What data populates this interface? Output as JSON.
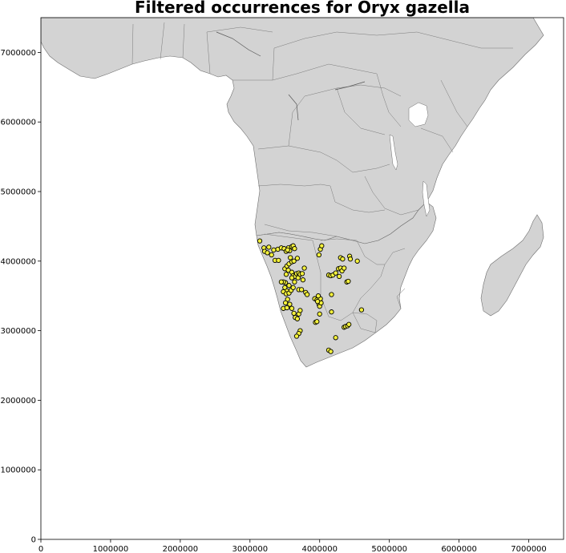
{
  "title": "Filtered occurrences for Oryx gazella",
  "colors": {
    "land": "#d3d3d3",
    "border": "#7a7a7a",
    "point_fill": "#f4f13c",
    "point_edge": "#000000"
  },
  "chart_data": {
    "type": "scatter",
    "title": "Filtered occurrences for Oryx gazella",
    "xlabel": "",
    "ylabel": "",
    "xlim": [
      0,
      7500000
    ],
    "ylim": [
      0,
      7500000
    ],
    "x_ticks": [
      0,
      1000000,
      2000000,
      3000000,
      4000000,
      5000000,
      6000000,
      7000000
    ],
    "y_ticks": [
      0,
      1000000,
      2000000,
      3000000,
      4000000,
      5000000,
      6000000,
      7000000
    ],
    "x_tick_labels": [
      "0",
      "1000000",
      "2000000",
      "3000000",
      "4000000",
      "5000000",
      "6000000",
      "7000000"
    ],
    "y_tick_labels": [
      "0",
      "1000000",
      "2000000",
      "3000000",
      "4000000",
      "5000000",
      "6000000",
      "7000000"
    ],
    "grid": false,
    "basemap": "Africa country outlines",
    "series": [
      {
        "points": [
          [
            3140000,
            4290000
          ],
          [
            3200000,
            4190000
          ],
          [
            3210000,
            4140000
          ],
          [
            3270000,
            4200000
          ],
          [
            3250000,
            4120000
          ],
          [
            3310000,
            4090000
          ],
          [
            3340000,
            4160000
          ],
          [
            3360000,
            4010000
          ],
          [
            3410000,
            4010000
          ],
          [
            3400000,
            4170000
          ],
          [
            3450000,
            4190000
          ],
          [
            3490000,
            4180000
          ],
          [
            3520000,
            4140000
          ],
          [
            3550000,
            4190000
          ],
          [
            3600000,
            4210000
          ],
          [
            3620000,
            4220000
          ],
          [
            3640000,
            4180000
          ],
          [
            3570000,
            4150000
          ],
          [
            3540000,
            4160000
          ],
          [
            3500000,
            3890000
          ],
          [
            3530000,
            3930000
          ],
          [
            3560000,
            3960000
          ],
          [
            3580000,
            4050000
          ],
          [
            3600000,
            3990000
          ],
          [
            3630000,
            4000000
          ],
          [
            3680000,
            4040000
          ],
          [
            3550000,
            3870000
          ],
          [
            3520000,
            3810000
          ],
          [
            3600000,
            3840000
          ],
          [
            3620000,
            3790000
          ],
          [
            3650000,
            3780000
          ],
          [
            3670000,
            3820000
          ],
          [
            3700000,
            3830000
          ],
          [
            3690000,
            3760000
          ],
          [
            3720000,
            3810000
          ],
          [
            3750000,
            3820000
          ],
          [
            3780000,
            3900000
          ],
          [
            3760000,
            3730000
          ],
          [
            3640000,
            3700000
          ],
          [
            3600000,
            3760000
          ],
          [
            3560000,
            3650000
          ],
          [
            3510000,
            3690000
          ],
          [
            3480000,
            3700000
          ],
          [
            3450000,
            3700000
          ],
          [
            3500000,
            3620000
          ],
          [
            3530000,
            3570000
          ],
          [
            3480000,
            3560000
          ],
          [
            3520000,
            3530000
          ],
          [
            3560000,
            3540000
          ],
          [
            3590000,
            3580000
          ],
          [
            3620000,
            3620000
          ],
          [
            3700000,
            3590000
          ],
          [
            3740000,
            3590000
          ],
          [
            3800000,
            3550000
          ],
          [
            3820000,
            3520000
          ],
          [
            3540000,
            3450000
          ],
          [
            3510000,
            3400000
          ],
          [
            3570000,
            3380000
          ],
          [
            3600000,
            3320000
          ],
          [
            3480000,
            3320000
          ],
          [
            3530000,
            3330000
          ],
          [
            3630000,
            3250000
          ],
          [
            3700000,
            3240000
          ],
          [
            3720000,
            3290000
          ],
          [
            3650000,
            3190000
          ],
          [
            3680000,
            3170000
          ],
          [
            3720000,
            3000000
          ],
          [
            3700000,
            2960000
          ],
          [
            3670000,
            2920000
          ],
          [
            3930000,
            3460000
          ],
          [
            3960000,
            3440000
          ],
          [
            3980000,
            3420000
          ],
          [
            3990000,
            3380000
          ],
          [
            4000000,
            3350000
          ],
          [
            4020000,
            3400000
          ],
          [
            4010000,
            3460000
          ],
          [
            3980000,
            3500000
          ],
          [
            3970000,
            3420000
          ],
          [
            3940000,
            3120000
          ],
          [
            3960000,
            3130000
          ],
          [
            4000000,
            3240000
          ],
          [
            3990000,
            4090000
          ],
          [
            4010000,
            4170000
          ],
          [
            4030000,
            4220000
          ],
          [
            4130000,
            3800000
          ],
          [
            4160000,
            3790000
          ],
          [
            4190000,
            3800000
          ],
          [
            4230000,
            3830000
          ],
          [
            4270000,
            3890000
          ],
          [
            4300000,
            3900000
          ],
          [
            4320000,
            3860000
          ],
          [
            4350000,
            3900000
          ],
          [
            4280000,
            3780000
          ],
          [
            4300000,
            4050000
          ],
          [
            4330000,
            4030000
          ],
          [
            4430000,
            4070000
          ],
          [
            4440000,
            4030000
          ],
          [
            4540000,
            4000000
          ],
          [
            4390000,
            3700000
          ],
          [
            4410000,
            3710000
          ],
          [
            4170000,
            3520000
          ],
          [
            4170000,
            3270000
          ],
          [
            4600000,
            3300000
          ],
          [
            4350000,
            3050000
          ],
          [
            4370000,
            3060000
          ],
          [
            4400000,
            3070000
          ],
          [
            4420000,
            3090000
          ],
          [
            4230000,
            2900000
          ],
          [
            4130000,
            2720000
          ],
          [
            4160000,
            2700000
          ]
        ]
      }
    ]
  }
}
